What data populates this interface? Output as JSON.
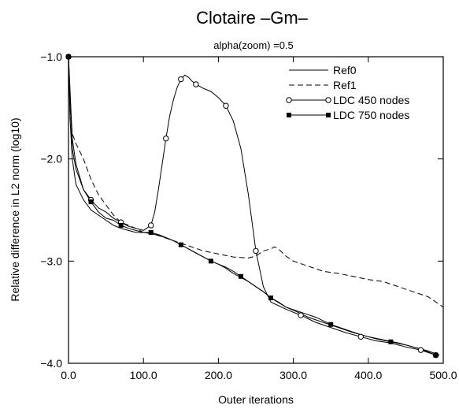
{
  "chart_data": {
    "type": "line",
    "title": "Clotaire –Gm–",
    "subtitle": "alpha(zoom) =0.5",
    "xlabel": "Outer iterations",
    "ylabel": "Relative difference in L2 norm (log10)",
    "xlim": [
      0,
      500
    ],
    "ylim": [
      -4.0,
      -1.0
    ],
    "x_ticks": [
      0,
      100,
      200,
      300,
      400,
      500
    ],
    "x_tick_labels": [
      "0.0",
      "100.0",
      "200.0",
      "300.0",
      "400.0",
      "500.0"
    ],
    "y_ticks": [
      -1.0,
      -2.0,
      -3.0,
      -4.0
    ],
    "y_tick_labels": [
      "−1.0",
      "−2.0",
      "−3.0",
      "−4.0"
    ],
    "grid": false,
    "legend_position": "top-right",
    "series": [
      {
        "name": "Ref0",
        "style": "solid",
        "marker": "none",
        "x": [
          0,
          2,
          5,
          10,
          20,
          30,
          40,
          50,
          60,
          70,
          80,
          90,
          100,
          110,
          120,
          130,
          140,
          150,
          160,
          170,
          180,
          190,
          200,
          210,
          220,
          230,
          240,
          250,
          260,
          270,
          280,
          290,
          300,
          320,
          340,
          360,
          380,
          400,
          420,
          440,
          460,
          480,
          495
        ],
        "y": [
          -1.0,
          -1.6,
          -2.0,
          -2.25,
          -2.4,
          -2.5,
          -2.55,
          -2.6,
          -2.65,
          -2.68,
          -2.7,
          -2.72,
          -2.72,
          -2.73,
          -2.75,
          -2.77,
          -2.8,
          -2.84,
          -2.88,
          -2.92,
          -2.96,
          -3.0,
          -3.03,
          -3.07,
          -3.12,
          -3.16,
          -3.2,
          -3.25,
          -3.3,
          -3.36,
          -3.4,
          -3.45,
          -3.48,
          -3.55,
          -3.6,
          -3.65,
          -3.7,
          -3.74,
          -3.77,
          -3.8,
          -3.84,
          -3.88,
          -3.92
        ]
      },
      {
        "name": "Ref1",
        "style": "dashed",
        "marker": "none",
        "x": [
          0,
          2,
          5,
          10,
          20,
          30,
          40,
          50,
          60,
          70,
          80,
          90,
          100,
          110,
          120,
          140,
          160,
          180,
          200,
          220,
          240,
          250,
          260,
          270,
          275,
          280,
          290,
          300,
          320,
          340,
          360,
          380,
          400,
          420,
          440,
          460,
          480,
          500
        ],
        "y": [
          -1.0,
          -1.5,
          -1.75,
          -1.85,
          -2.0,
          -2.2,
          -2.35,
          -2.45,
          -2.55,
          -2.62,
          -2.65,
          -2.68,
          -2.72,
          -2.73,
          -2.75,
          -2.8,
          -2.85,
          -2.9,
          -2.93,
          -2.96,
          -2.97,
          -2.95,
          -2.9,
          -2.88,
          -2.86,
          -2.88,
          -2.95,
          -3.0,
          -3.05,
          -3.1,
          -3.12,
          -3.15,
          -3.18,
          -3.2,
          -3.25,
          -3.3,
          -3.35,
          -3.45
        ]
      },
      {
        "name": "LDC 450 nodes",
        "style": "solid",
        "marker": "open-circle",
        "x": [
          0,
          5,
          10,
          20,
          30,
          40,
          50,
          60,
          70,
          80,
          90,
          100,
          110,
          115,
          120,
          125,
          130,
          135,
          140,
          145,
          150,
          155,
          160,
          165,
          170,
          180,
          190,
          200,
          210,
          220,
          230,
          240,
          250,
          260,
          270,
          290,
          310,
          330,
          350,
          370,
          390,
          410,
          430,
          450,
          470,
          490
        ],
        "y": [
          -1.0,
          -1.9,
          -2.1,
          -2.3,
          -2.4,
          -2.48,
          -2.52,
          -2.58,
          -2.62,
          -2.66,
          -2.68,
          -2.7,
          -2.65,
          -2.52,
          -2.3,
          -2.05,
          -1.8,
          -1.58,
          -1.42,
          -1.3,
          -1.22,
          -1.18,
          -1.2,
          -1.24,
          -1.27,
          -1.31,
          -1.34,
          -1.4,
          -1.48,
          -1.63,
          -1.9,
          -2.35,
          -2.9,
          -3.25,
          -3.4,
          -3.47,
          -3.53,
          -3.6,
          -3.65,
          -3.7,
          -3.74,
          -3.78,
          -3.8,
          -3.84,
          -3.87,
          -3.92
        ]
      },
      {
        "name": "LDC 750 nodes",
        "style": "solid",
        "marker": "filled-square",
        "x": [
          0,
          5,
          10,
          20,
          30,
          40,
          50,
          60,
          70,
          80,
          90,
          100,
          110,
          120,
          130,
          140,
          150,
          160,
          170,
          180,
          190,
          200,
          210,
          220,
          230,
          240,
          250,
          260,
          270,
          290,
          310,
          330,
          350,
          370,
          390,
          410,
          430,
          450,
          470,
          490
        ],
        "y": [
          -1.0,
          -1.8,
          -2.05,
          -2.3,
          -2.42,
          -2.52,
          -2.58,
          -2.6,
          -2.65,
          -2.68,
          -2.7,
          -2.72,
          -2.72,
          -2.74,
          -2.77,
          -2.8,
          -2.84,
          -2.88,
          -2.92,
          -2.96,
          -3.0,
          -3.03,
          -3.06,
          -3.1,
          -3.15,
          -3.2,
          -3.25,
          -3.3,
          -3.36,
          -3.45,
          -3.5,
          -3.55,
          -3.62,
          -3.67,
          -3.72,
          -3.76,
          -3.79,
          -3.82,
          -3.86,
          -3.92
        ]
      }
    ]
  }
}
